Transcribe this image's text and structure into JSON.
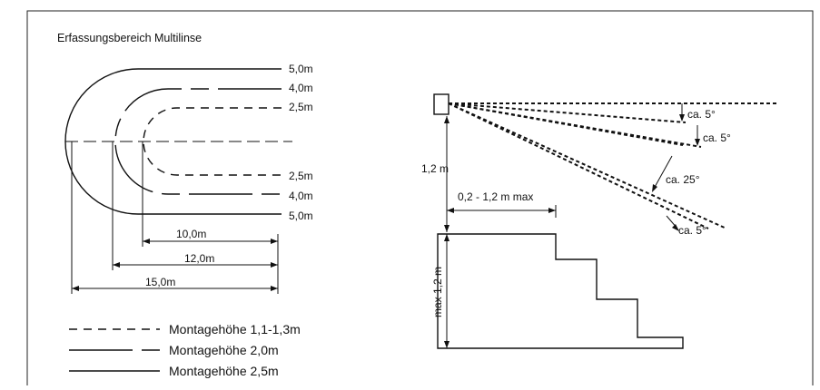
{
  "title": "Erfassungsbereich Multilinse",
  "ranges": {
    "r5_top": "5,0m",
    "r4_top": "4,0m",
    "r25_top": "2,5m",
    "r25_bottom": "2,5m",
    "r4_bottom": "4,0m",
    "r5_bottom": "5,0m"
  },
  "dimensions": {
    "d10": "10,0m",
    "d12": "12,0m",
    "d15": "15,0m"
  },
  "legend": {
    "dashed": "Montagehöhe 1,1-1,3m",
    "dashdot": "Montagehöhe 2,0m",
    "solid": "Montagehöhe 2,5m"
  },
  "side": {
    "height": "1,2 m",
    "distance": "0,2 - 1,2 m max",
    "step_height": "max 1,2 m",
    "angle1": "ca. 5°",
    "angle2": "ca. 5°",
    "angle3": "ca. 25°",
    "angle4": "ca. 5°"
  }
}
